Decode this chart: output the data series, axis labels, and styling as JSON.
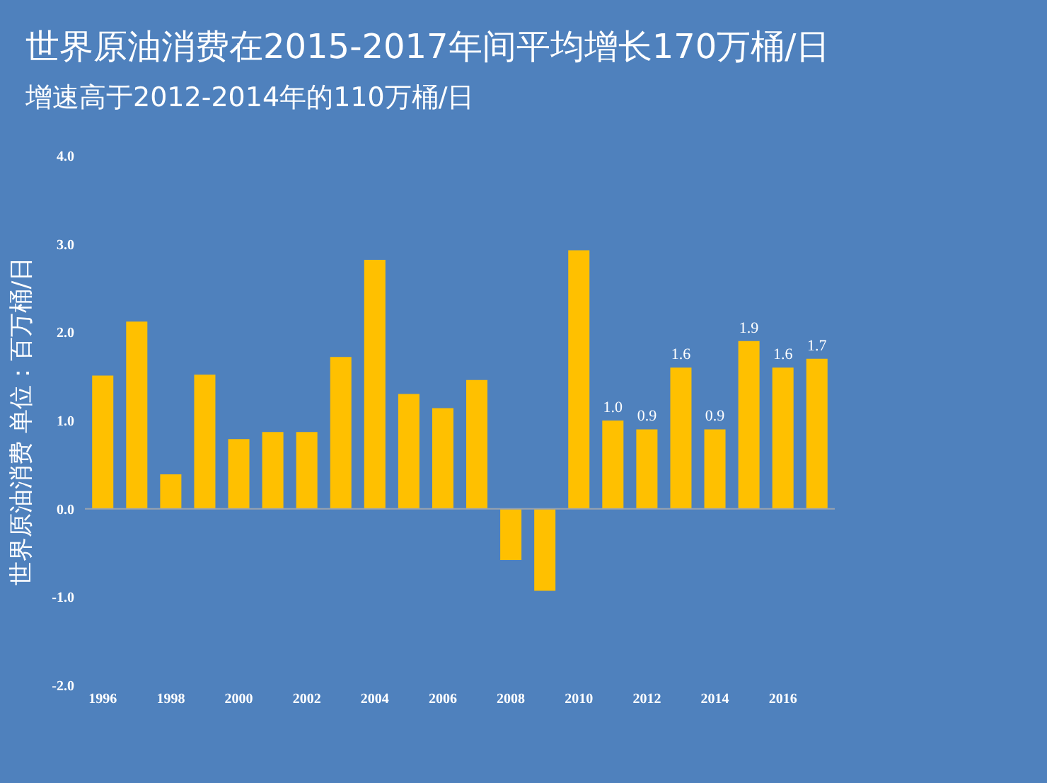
{
  "chart_data": {
    "type": "bar",
    "title": "世界原油消费在2015-2017年间平均增长170万桶/日",
    "subtitle": "增速高于2012-2014年的110万桶/日",
    "ylabel": "世界原油消费 单位：百万桶/日",
    "categories": [
      "1996",
      null,
      "1998",
      null,
      "2000",
      null,
      "2002",
      null,
      "2004",
      null,
      "2006",
      null,
      "2008",
      null,
      "2010",
      null,
      "2012",
      null,
      "2014",
      null,
      "2016",
      null
    ],
    "series": [
      {
        "color": "#ffc000",
        "values": [
          1.51,
          2.12,
          0.39,
          1.52,
          0.79,
          0.87,
          0.87,
          1.72,
          2.82,
          1.3,
          1.14,
          1.46,
          -0.58,
          -0.93,
          2.93,
          1.0,
          0.9,
          1.6,
          0.9,
          1.9,
          1.6,
          1.7
        ],
        "value_labels": [
          null,
          null,
          null,
          null,
          null,
          null,
          null,
          null,
          null,
          null,
          null,
          null,
          null,
          null,
          null,
          "1.0",
          "0.9",
          "1.6",
          "0.9",
          "1.9",
          "1.6",
          "1.7"
        ]
      }
    ],
    "ylim": [
      -2.0,
      4.0
    ],
    "yticks": [
      {
        "value": -2,
        "label": "-2.0"
      },
      {
        "value": -1,
        "label": "-1.0"
      },
      {
        "value": 0,
        "label": "0.0"
      },
      {
        "value": 1,
        "label": "1.0"
      },
      {
        "value": 2,
        "label": "2.0"
      },
      {
        "value": 3,
        "label": "3.0"
      },
      {
        "value": 4,
        "label": "4.0"
      }
    ],
    "ref_lines": [
      {
        "axis": "y",
        "value": 0,
        "color": "#9aa3ae"
      }
    ],
    "grid": false
  }
}
